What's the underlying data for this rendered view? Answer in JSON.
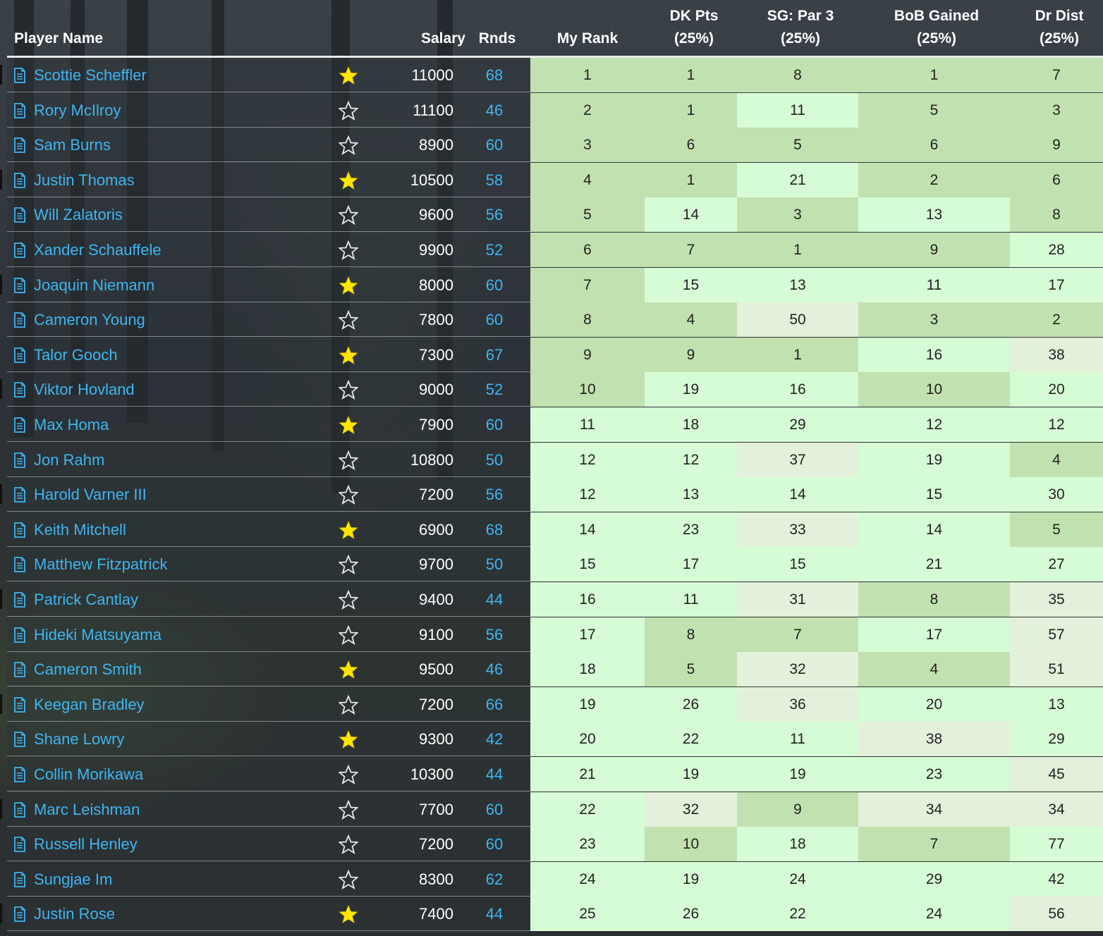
{
  "columns": {
    "player_name": "Player Name",
    "salary": "Salary",
    "rnds": "Rnds",
    "my_rank": "My Rank",
    "dk_pts_l1": "DK Pts",
    "dk_pts_l2": "(25%)",
    "sg_par3_l1": "SG: Par 3",
    "sg_par3_l2": "(25%)",
    "bob_l1": "BoB Gained",
    "bob_l2": "(25%)",
    "drdist_l1": "Dr Dist",
    "drdist_l2": "(25%)"
  },
  "colors": {
    "shade_dark": "#c1e1b0",
    "shade_light": "#d6fcd6",
    "shade_pale": "#e3f0da",
    "link": "#3fb5f0",
    "star_filled": "#ffe600"
  },
  "rows": [
    {
      "name": "Scottie Scheffler",
      "starred": true,
      "salary": "11000",
      "rnds": "68",
      "my_rank": "1",
      "dk": "1",
      "sg": "8",
      "bob": "1",
      "dr": "7",
      "shade": [
        "dark",
        "dark",
        "dark",
        "dark",
        "dark"
      ]
    },
    {
      "name": "Rory McIlroy",
      "starred": false,
      "salary": "11100",
      "rnds": "46",
      "my_rank": "2",
      "dk": "1",
      "sg": "11",
      "bob": "5",
      "dr": "3",
      "shade": [
        "dark",
        "dark",
        "light",
        "dark",
        "dark"
      ]
    },
    {
      "name": "Sam Burns",
      "starred": false,
      "salary": "8900",
      "rnds": "60",
      "my_rank": "3",
      "dk": "6",
      "sg": "5",
      "bob": "6",
      "dr": "9",
      "shade": [
        "dark",
        "dark",
        "dark",
        "dark",
        "dark"
      ]
    },
    {
      "name": "Justin Thomas",
      "starred": true,
      "salary": "10500",
      "rnds": "58",
      "my_rank": "4",
      "dk": "1",
      "sg": "21",
      "bob": "2",
      "dr": "6",
      "shade": [
        "dark",
        "dark",
        "light",
        "dark",
        "dark"
      ]
    },
    {
      "name": "Will Zalatoris",
      "starred": false,
      "salary": "9600",
      "rnds": "56",
      "my_rank": "5",
      "dk": "14",
      "sg": "3",
      "bob": "13",
      "dr": "8",
      "shade": [
        "dark",
        "light",
        "dark",
        "light",
        "dark"
      ]
    },
    {
      "name": "Xander Schauffele",
      "starred": false,
      "salary": "9900",
      "rnds": "52",
      "my_rank": "6",
      "dk": "7",
      "sg": "1",
      "bob": "9",
      "dr": "28",
      "shade": [
        "dark",
        "dark",
        "dark",
        "dark",
        "light"
      ]
    },
    {
      "name": "Joaquin Niemann",
      "starred": true,
      "salary": "8000",
      "rnds": "60",
      "my_rank": "7",
      "dk": "15",
      "sg": "13",
      "bob": "11",
      "dr": "17",
      "shade": [
        "dark",
        "light",
        "light",
        "light",
        "light"
      ]
    },
    {
      "name": "Cameron Young",
      "starred": false,
      "salary": "7800",
      "rnds": "60",
      "my_rank": "8",
      "dk": "4",
      "sg": "50",
      "bob": "3",
      "dr": "2",
      "shade": [
        "dark",
        "dark",
        "pale",
        "dark",
        "dark"
      ]
    },
    {
      "name": "Talor Gooch",
      "starred": true,
      "salary": "7300",
      "rnds": "67",
      "my_rank": "9",
      "dk": "9",
      "sg": "1",
      "bob": "16",
      "dr": "38",
      "shade": [
        "dark",
        "dark",
        "dark",
        "light",
        "pale"
      ]
    },
    {
      "name": "Viktor Hovland",
      "starred": false,
      "salary": "9000",
      "rnds": "52",
      "my_rank": "10",
      "dk": "19",
      "sg": "16",
      "bob": "10",
      "dr": "20",
      "shade": [
        "dark",
        "light",
        "light",
        "dark",
        "light"
      ]
    },
    {
      "name": "Max Homa",
      "starred": true,
      "salary": "7900",
      "rnds": "60",
      "my_rank": "11",
      "dk": "18",
      "sg": "29",
      "bob": "12",
      "dr": "12",
      "shade": [
        "light",
        "light",
        "light",
        "light",
        "light"
      ]
    },
    {
      "name": "Jon Rahm",
      "starred": false,
      "salary": "10800",
      "rnds": "50",
      "my_rank": "12",
      "dk": "12",
      "sg": "37",
      "bob": "19",
      "dr": "4",
      "shade": [
        "light",
        "light",
        "pale",
        "light",
        "dark"
      ]
    },
    {
      "name": "Harold Varner III",
      "starred": false,
      "salary": "7200",
      "rnds": "56",
      "my_rank": "12",
      "dk": "13",
      "sg": "14",
      "bob": "15",
      "dr": "30",
      "shade": [
        "light",
        "light",
        "light",
        "light",
        "light"
      ]
    },
    {
      "name": "Keith Mitchell",
      "starred": true,
      "salary": "6900",
      "rnds": "68",
      "my_rank": "14",
      "dk": "23",
      "sg": "33",
      "bob": "14",
      "dr": "5",
      "shade": [
        "light",
        "light",
        "pale",
        "light",
        "dark"
      ]
    },
    {
      "name": "Matthew Fitzpatrick",
      "starred": false,
      "salary": "9700",
      "rnds": "50",
      "my_rank": "15",
      "dk": "17",
      "sg": "15",
      "bob": "21",
      "dr": "27",
      "shade": [
        "light",
        "light",
        "light",
        "light",
        "light"
      ]
    },
    {
      "name": "Patrick Cantlay",
      "starred": false,
      "salary": "9400",
      "rnds": "44",
      "my_rank": "16",
      "dk": "11",
      "sg": "31",
      "bob": "8",
      "dr": "35",
      "shade": [
        "light",
        "light",
        "pale",
        "dark",
        "pale"
      ]
    },
    {
      "name": "Hideki Matsuyama",
      "starred": false,
      "salary": "9100",
      "rnds": "56",
      "my_rank": "17",
      "dk": "8",
      "sg": "7",
      "bob": "17",
      "dr": "57",
      "shade": [
        "light",
        "dark",
        "dark",
        "light",
        "pale"
      ]
    },
    {
      "name": "Cameron Smith",
      "starred": true,
      "salary": "9500",
      "rnds": "46",
      "my_rank": "18",
      "dk": "5",
      "sg": "32",
      "bob": "4",
      "dr": "51",
      "shade": [
        "light",
        "dark",
        "pale",
        "dark",
        "pale"
      ]
    },
    {
      "name": "Keegan Bradley",
      "starred": false,
      "salary": "7200",
      "rnds": "66",
      "my_rank": "19",
      "dk": "26",
      "sg": "36",
      "bob": "20",
      "dr": "13",
      "shade": [
        "light",
        "light",
        "pale",
        "light",
        "light"
      ]
    },
    {
      "name": "Shane Lowry",
      "starred": true,
      "salary": "9300",
      "rnds": "42",
      "my_rank": "20",
      "dk": "22",
      "sg": "11",
      "bob": "38",
      "dr": "29",
      "shade": [
        "light",
        "light",
        "light",
        "pale",
        "light"
      ]
    },
    {
      "name": "Collin Morikawa",
      "starred": false,
      "salary": "10300",
      "rnds": "44",
      "my_rank": "21",
      "dk": "19",
      "sg": "19",
      "bob": "23",
      "dr": "45",
      "shade": [
        "light",
        "light",
        "light",
        "light",
        "pale"
      ]
    },
    {
      "name": "Marc Leishman",
      "starred": false,
      "salary": "7700",
      "rnds": "60",
      "my_rank": "22",
      "dk": "32",
      "sg": "9",
      "bob": "34",
      "dr": "34",
      "shade": [
        "light",
        "pale",
        "dark",
        "pale",
        "pale"
      ]
    },
    {
      "name": "Russell Henley",
      "starred": false,
      "salary": "7200",
      "rnds": "60",
      "my_rank": "23",
      "dk": "10",
      "sg": "18",
      "bob": "7",
      "dr": "77",
      "shade": [
        "light",
        "dark",
        "light",
        "dark",
        "light"
      ]
    },
    {
      "name": "Sungjae Im",
      "starred": false,
      "salary": "8300",
      "rnds": "62",
      "my_rank": "24",
      "dk": "19",
      "sg": "24",
      "bob": "29",
      "dr": "42",
      "shade": [
        "light",
        "light",
        "light",
        "light",
        "light"
      ]
    },
    {
      "name": "Justin Rose",
      "starred": true,
      "salary": "7400",
      "rnds": "44",
      "my_rank": "25",
      "dk": "26",
      "sg": "22",
      "bob": "24",
      "dr": "56",
      "shade": [
        "light",
        "light",
        "light",
        "light",
        "pale"
      ]
    }
  ]
}
